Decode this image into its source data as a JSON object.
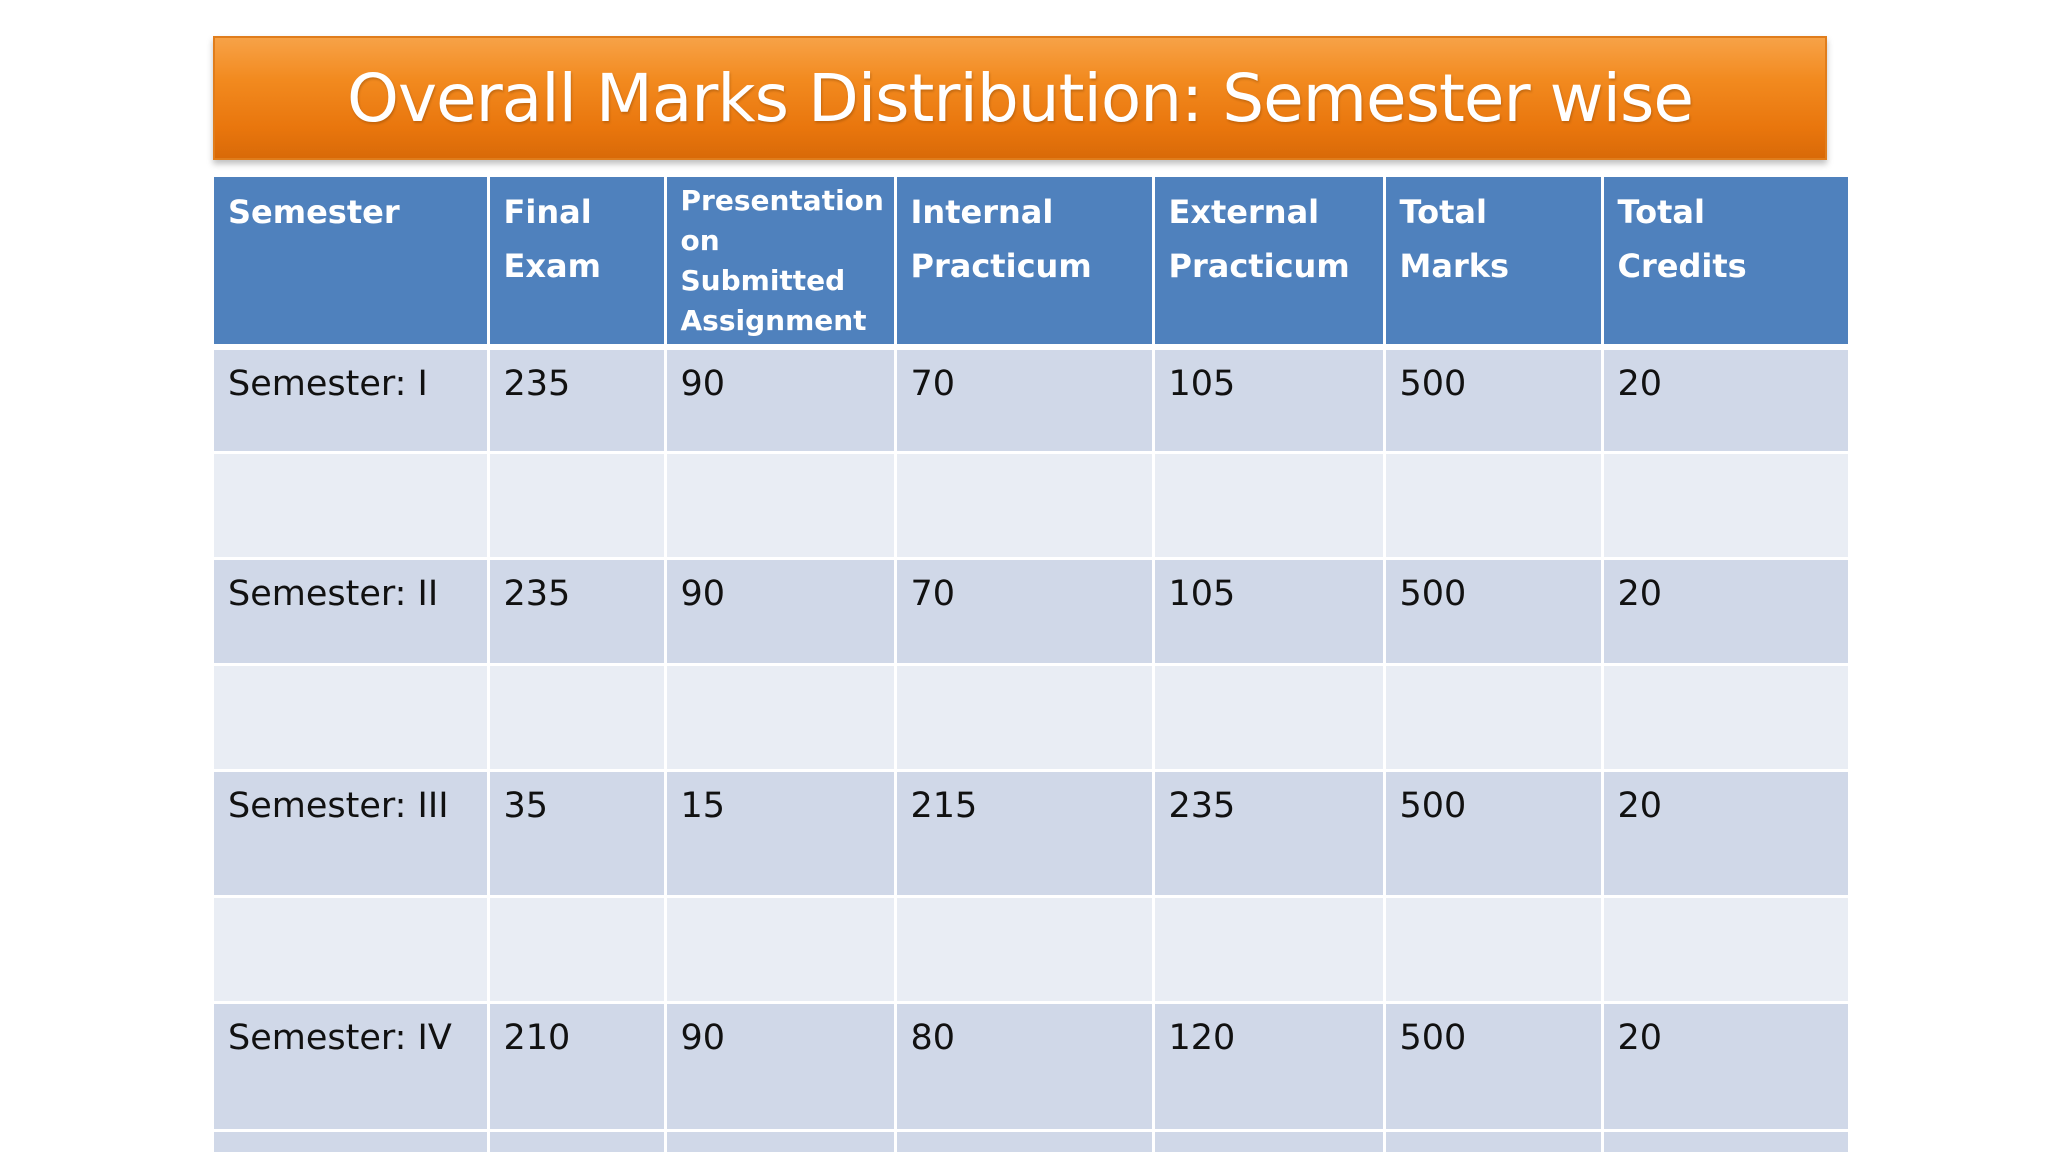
{
  "title": "Overall Marks Distribution: Semester wise",
  "table": {
    "headers": [
      "Semester",
      "Final Exam",
      "Presentation on Submitted Assignment",
      "Internal Practicum",
      "External Practicum",
      "Total Marks",
      "Total Credits"
    ],
    "rows": [
      [
        "Semester: I",
        "235",
        "90",
        "70",
        "105",
        "500",
        "20"
      ],
      [
        "Semester: II",
        "235",
        "90",
        "70",
        "105",
        "500",
        "20"
      ],
      [
        "Semester: III",
        "35",
        "15",
        "215",
        "235",
        "500",
        "20"
      ],
      [
        "Semester: IV",
        "210",
        "90",
        "80",
        "120",
        "500",
        "20"
      ]
    ]
  },
  "colors": {
    "title_banner": "#f28a1f",
    "header_bg": "#4f81bd",
    "row_dark": "#d0d8e8",
    "row_light": "#e9edf4",
    "partial_text": "#e03030"
  }
}
